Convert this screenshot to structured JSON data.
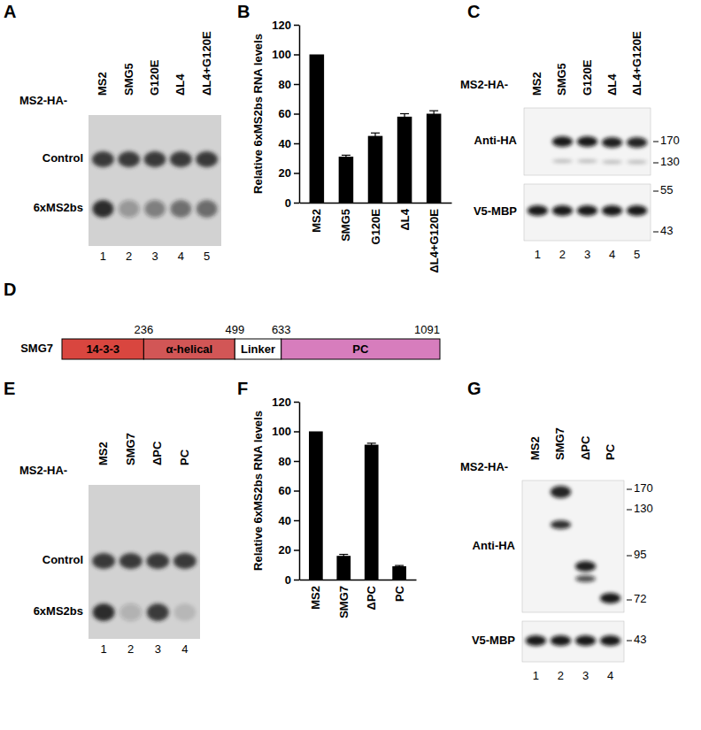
{
  "chart_data": [
    {
      "type": "bar",
      "title": "B",
      "y_label": "Relative 6xMS2bs RNA levels",
      "categories": [
        "MS2",
        "SMG5",
        "G120E",
        "ΔL4",
        "ΔL4+G120E"
      ],
      "values": [
        100,
        31,
        45,
        58,
        60
      ],
      "errors": [
        null,
        1,
        2,
        2,
        2
      ],
      "color": "#000000",
      "ylim": [
        0,
        120
      ],
      "yticks": [
        0,
        20,
        40,
        60,
        80,
        100,
        120
      ]
    },
    {
      "type": "bar",
      "title": "F",
      "y_label": "Relative 6xMS2bs RNA levels",
      "categories": [
        "MS2",
        "SMG7",
        "ΔPC",
        "PC"
      ],
      "values": [
        100,
        16,
        91,
        9
      ],
      "errors": [
        null,
        1,
        1,
        0.5
      ],
      "color": "#000000",
      "ylim": [
        0,
        120
      ],
      "yticks": [
        0,
        20,
        40,
        60,
        80,
        100,
        120
      ]
    }
  ],
  "panels": {
    "A": {
      "letter": "A",
      "row_label": "MS2-HA-",
      "lanes": [
        "MS2",
        "SMG5",
        "G120E",
        "ΔL4",
        "ΔL4+G120E"
      ],
      "bands": [
        "Control",
        "6xMS2bs"
      ],
      "lane_numbers": [
        1,
        2,
        3,
        4,
        5
      ]
    },
    "C": {
      "letter": "C",
      "row_label": "MS2-HA-",
      "lanes": [
        "MS2",
        "SMG5",
        "G120E",
        "ΔL4",
        "ΔL4+G120E"
      ],
      "blots": [
        {
          "name": "Anti-HA",
          "markers": [
            170,
            130
          ]
        },
        {
          "name": "V5-MBP",
          "markers": [
            55,
            43
          ]
        }
      ],
      "lane_numbers": [
        1,
        2,
        3,
        4,
        5
      ]
    },
    "D": {
      "letter": "D",
      "protein": "SMG7",
      "domains": [
        {
          "name": "14-3-3",
          "end": 236,
          "color": "#d9463f"
        },
        {
          "name": "α-helical",
          "end": 499,
          "color": "#d25656"
        },
        {
          "name": "Linker",
          "end": 633,
          "color": "#ffffff"
        },
        {
          "name": "PC",
          "end": 1091,
          "color": "#d77dbd"
        }
      ]
    },
    "E": {
      "letter": "E",
      "row_label": "MS2-HA-",
      "lanes": [
        "MS2",
        "SMG7",
        "ΔPC",
        "PC"
      ],
      "bands": [
        "Control",
        "6xMS2bs"
      ],
      "lane_numbers": [
        1,
        2,
        3,
        4
      ]
    },
    "G": {
      "letter": "G",
      "row_label": "MS2-HA-",
      "lanes": [
        "MS2",
        "SMG7",
        "ΔPC",
        "PC"
      ],
      "blots": [
        {
          "name": "Anti-HA",
          "markers": [
            170,
            130,
            95,
            72
          ]
        },
        {
          "name": "V5-MBP",
          "markers": [
            43
          ]
        }
      ],
      "lane_numbers": [
        1,
        2,
        3,
        4
      ]
    }
  }
}
